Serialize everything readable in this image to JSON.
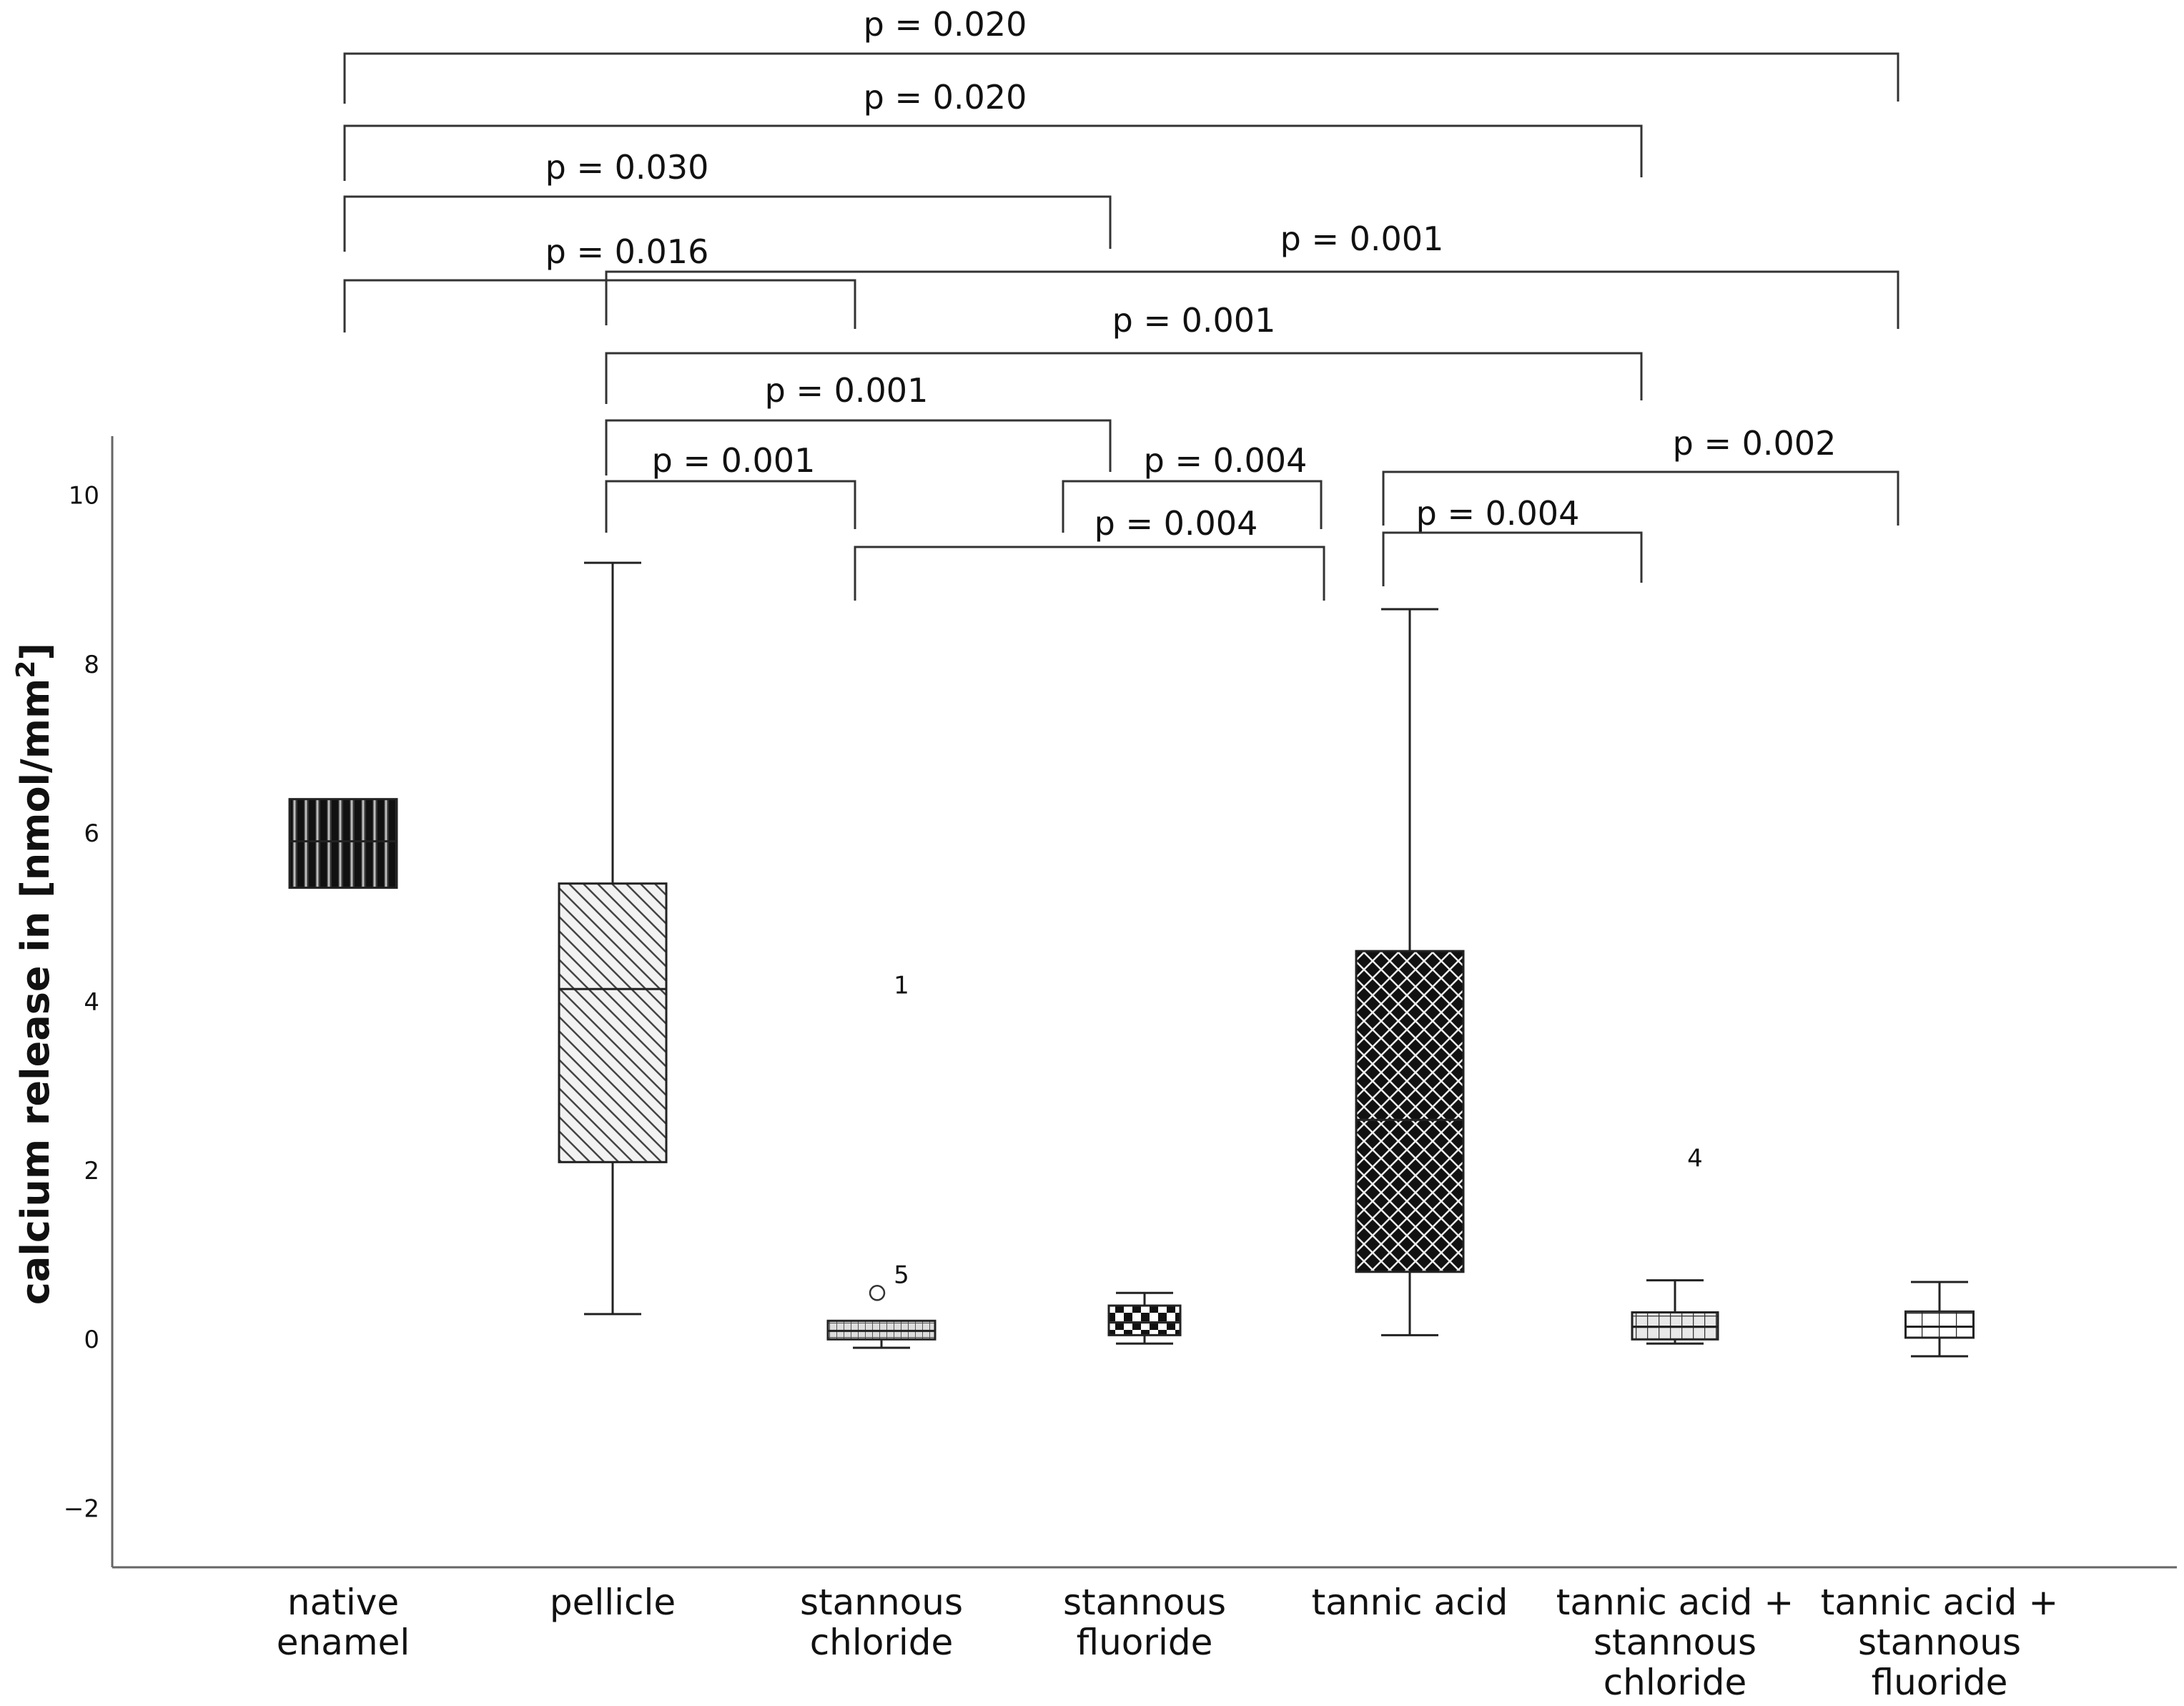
{
  "chart_data": {
    "type": "boxplot",
    "ylabel": "calcium release in [nmol/mm²]",
    "ylabel_text": "calcium release in [nmol/mm",
    "ylabel_sup": "2",
    "ylabel_close": "]",
    "ylim": [
      -2.7,
      10.7
    ],
    "yticks": [
      -2,
      0,
      2,
      4,
      6,
      8,
      10
    ],
    "ytick_labels": [
      "−2",
      "0",
      "2",
      "4",
      "6",
      "8",
      "10"
    ],
    "grid": false,
    "categories": [
      {
        "lines": [
          "native",
          "enamel"
        ]
      },
      {
        "lines": [
          "pellicle"
        ]
      },
      {
        "lines": [
          "stannous",
          "chloride"
        ]
      },
      {
        "lines": [
          "stannous",
          "fluoride"
        ]
      },
      {
        "lines": [
          "tannic acid"
        ]
      },
      {
        "lines": [
          "tannic acid +",
          "stannous",
          "chloride"
        ]
      },
      {
        "lines": [
          "tannic acid +",
          "stannous",
          "fluoride"
        ]
      }
    ],
    "boxes": [
      {
        "category": "native enamel",
        "whisker_low": 5.35,
        "q1": 5.35,
        "median": 5.9,
        "q3": 6.4,
        "whisker_high": 6.4,
        "pattern": "vertical-lines"
      },
      {
        "category": "pellicle",
        "whisker_low": 0.3,
        "q1": 2.1,
        "median": 4.15,
        "q3": 5.4,
        "whisker_high": 9.2,
        "pattern": "diagonal-lines"
      },
      {
        "category": "stannous chloride",
        "whisker_low": -0.1,
        "q1": 0.0,
        "median": 0.1,
        "q3": 0.22,
        "whisker_high": 0.22,
        "pattern": "fine-grid"
      },
      {
        "category": "stannous fluoride",
        "whisker_low": -0.05,
        "q1": 0.05,
        "median": 0.2,
        "q3": 0.4,
        "whisker_high": 0.55,
        "pattern": "checkerboard"
      },
      {
        "category": "tannic acid",
        "whisker_low": 0.05,
        "q1": 0.8,
        "median": 2.6,
        "q3": 4.6,
        "whisker_high": 8.65,
        "pattern": "crosshatch"
      },
      {
        "category": "tannic acid + stannous chloride",
        "whisker_low": -0.05,
        "q1": 0.0,
        "median": 0.15,
        "q3": 0.32,
        "whisker_high": 0.7,
        "pattern": "grid"
      },
      {
        "category": "tannic acid + stannous fluoride",
        "whisker_low": -0.2,
        "q1": 0.02,
        "median": 0.15,
        "q3": 0.33,
        "whisker_high": 0.68,
        "pattern": "large-grid"
      }
    ],
    "outliers": [
      {
        "category_index": 2,
        "value": 0.55,
        "label": "5",
        "marker": "circle"
      },
      {
        "category_index": 2,
        "value": 4.2,
        "label": "1",
        "marker": "none"
      },
      {
        "category_index": 5,
        "value": 2.15,
        "label": "4",
        "marker": "none"
      }
    ],
    "comparisons": [
      {
        "from": 0,
        "to": 6,
        "p": "p = 0.020"
      },
      {
        "from": 0,
        "to": 5,
        "p": "p = 0.020"
      },
      {
        "from": 0,
        "to": 3,
        "p": "p = 0.030"
      },
      {
        "from": 0,
        "to": 2,
        "p": "p = 0.016"
      },
      {
        "from": 1,
        "to": 6,
        "p": "p = 0.001"
      },
      {
        "from": 1,
        "to": 5,
        "p": "p = 0.001"
      },
      {
        "from": 1,
        "to": 3,
        "p": "p = 0.001"
      },
      {
        "from": 1,
        "to": 2,
        "p": "p = 0.001"
      },
      {
        "from": 3,
        "to": 4,
        "p": "p = 0.004"
      },
      {
        "from": 2,
        "to": 4,
        "p": "p = 0.004"
      },
      {
        "from": 4,
        "to": 6,
        "p": "p = 0.002"
      },
      {
        "from": 4,
        "to": 5,
        "p": "p = 0.004"
      }
    ]
  }
}
